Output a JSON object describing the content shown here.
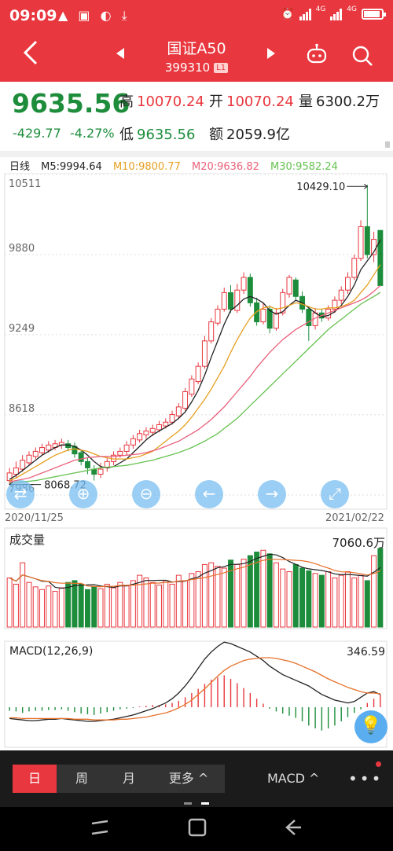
{
  "status_bar": {
    "time": "09:09",
    "left_icons": "▲ ▣ ◐ ⤓",
    "net1": "4G",
    "net2": "4G"
  },
  "header": {
    "title": "国证A50",
    "code": "399310",
    "badge": "L1",
    "back_icon": "back-arrow-icon",
    "prev_icon": "prev-triangle-icon",
    "next_icon": "next-triangle-icon",
    "robot_icon": "robot-icon",
    "search_icon": "search-icon"
  },
  "quote": {
    "price": "9635.56",
    "change": "-429.77",
    "change_pct": "-4.27%",
    "high_label": "高",
    "high": "10070.24",
    "open_label": "开",
    "open": "10070.24",
    "volume_label": "量",
    "volume": "6300.2万",
    "low_label": "低",
    "low": "9635.56",
    "amount_label": "额",
    "amount": "2059.9亿"
  },
  "ma_legend": {
    "period": "日线",
    "ma5": "M5:9994.64",
    "ma10": "M10:9800.77",
    "ma20": "M20:9636.82",
    "ma30": "M30:9582.24"
  },
  "colors": {
    "up": "#e8373e",
    "down": "#1d8d3c",
    "ma5": "#222222",
    "ma10": "#e6a020",
    "ma20": "#e9607a",
    "ma30": "#66c250"
  },
  "chart_data": [
    {
      "type": "candlestick",
      "y_axis_labels": [
        "10511",
        "9880",
        "9249",
        "8618",
        "7986"
      ],
      "ylim": [
        7986,
        10511
      ],
      "x_start": "2020/11/25",
      "x_end": "2021/02/22",
      "max_annotation": "10429.10",
      "min_annotation": "8068.72",
      "candles": [
        {
          "o": 8100,
          "c": 8160,
          "h": 8200,
          "l": 8068.72
        },
        {
          "o": 8150,
          "c": 8200,
          "h": 8250,
          "l": 8120
        },
        {
          "o": 8190,
          "c": 8260,
          "h": 8300,
          "l": 8170
        },
        {
          "o": 8240,
          "c": 8300,
          "h": 8330,
          "l": 8220
        },
        {
          "o": 8290,
          "c": 8330,
          "h": 8360,
          "l": 8270
        },
        {
          "o": 8320,
          "c": 8360,
          "h": 8390,
          "l": 8300
        },
        {
          "o": 8340,
          "c": 8380,
          "h": 8410,
          "l": 8320
        },
        {
          "o": 8360,
          "c": 8390,
          "h": 8420,
          "l": 8340
        },
        {
          "o": 8380,
          "c": 8400,
          "h": 8430,
          "l": 8350
        },
        {
          "o": 8390,
          "c": 8360,
          "h": 8420,
          "l": 8330
        },
        {
          "o": 8370,
          "c": 8310,
          "h": 8400,
          "l": 8280
        },
        {
          "o": 8320,
          "c": 8250,
          "h": 8340,
          "l": 8220
        },
        {
          "o": 8250,
          "c": 8200,
          "h": 8280,
          "l": 8150
        },
        {
          "o": 8190,
          "c": 8150,
          "h": 8220,
          "l": 8100
        },
        {
          "o": 8150,
          "c": 8190,
          "h": 8240,
          "l": 8120
        },
        {
          "o": 8200,
          "c": 8250,
          "h": 8280,
          "l": 8170
        },
        {
          "o": 8250,
          "c": 8300,
          "h": 8330,
          "l": 8220
        },
        {
          "o": 8300,
          "c": 8330,
          "h": 8360,
          "l": 8280
        },
        {
          "o": 8330,
          "c": 8380,
          "h": 8410,
          "l": 8300
        },
        {
          "o": 8380,
          "c": 8430,
          "h": 8460,
          "l": 8350
        },
        {
          "o": 8420,
          "c": 8470,
          "h": 8500,
          "l": 8400
        },
        {
          "o": 8460,
          "c": 8490,
          "h": 8520,
          "l": 8430
        },
        {
          "o": 8480,
          "c": 8510,
          "h": 8540,
          "l": 8450
        },
        {
          "o": 8500,
          "c": 8540,
          "h": 8570,
          "l": 8480
        },
        {
          "o": 8530,
          "c": 8560,
          "h": 8590,
          "l": 8510
        },
        {
          "o": 8560,
          "c": 8620,
          "h": 8650,
          "l": 8540
        },
        {
          "o": 8610,
          "c": 8680,
          "h": 8710,
          "l": 8590
        },
        {
          "o": 8670,
          "c": 8800,
          "h": 8830,
          "l": 8650
        },
        {
          "o": 8780,
          "c": 8900,
          "h": 8930,
          "l": 8760
        },
        {
          "o": 8880,
          "c": 9000,
          "h": 9030,
          "l": 8860
        },
        {
          "o": 9000,
          "c": 9200,
          "h": 9240,
          "l": 8980
        },
        {
          "o": 9200,
          "c": 9350,
          "h": 9380,
          "l": 9180
        },
        {
          "o": 9340,
          "c": 9450,
          "h": 9480,
          "l": 9320
        },
        {
          "o": 9450,
          "c": 9580,
          "h": 9620,
          "l": 9430
        },
        {
          "o": 9580,
          "c": 9450,
          "h": 9640,
          "l": 9420
        },
        {
          "o": 9440,
          "c": 9600,
          "h": 9650,
          "l": 9420
        },
        {
          "o": 9600,
          "c": 9700,
          "h": 9740,
          "l": 9570
        },
        {
          "o": 9700,
          "c": 9500,
          "h": 9730,
          "l": 9470
        },
        {
          "o": 9500,
          "c": 9350,
          "h": 9540,
          "l": 9320
        },
        {
          "o": 9350,
          "c": 9450,
          "h": 9500,
          "l": 9330
        },
        {
          "o": 9450,
          "c": 9300,
          "h": 9480,
          "l": 9260
        },
        {
          "o": 9300,
          "c": 9420,
          "h": 9460,
          "l": 9280
        },
        {
          "o": 9420,
          "c": 9580,
          "h": 9610,
          "l": 9400
        },
        {
          "o": 9570,
          "c": 9700,
          "h": 9720,
          "l": 9540
        },
        {
          "o": 9680,
          "c": 9550,
          "h": 9700,
          "l": 9520
        },
        {
          "o": 9550,
          "c": 9450,
          "h": 9590,
          "l": 9420
        },
        {
          "o": 9450,
          "c": 9320,
          "h": 9470,
          "l": 9200
        },
        {
          "o": 9320,
          "c": 9420,
          "h": 9460,
          "l": 9290
        },
        {
          "o": 9420,
          "c": 9380,
          "h": 9450,
          "l": 9350
        },
        {
          "o": 9380,
          "c": 9450,
          "h": 9480,
          "l": 9360
        },
        {
          "o": 9450,
          "c": 9520,
          "h": 9550,
          "l": 9420
        },
        {
          "o": 9520,
          "c": 9600,
          "h": 9630,
          "l": 9490
        },
        {
          "o": 9600,
          "c": 9700,
          "h": 9740,
          "l": 9570
        },
        {
          "o": 9700,
          "c": 9850,
          "h": 9880,
          "l": 9680
        },
        {
          "o": 9850,
          "c": 10100,
          "h": 10150,
          "l": 9830
        },
        {
          "o": 10100,
          "c": 9880,
          "h": 10429.1,
          "l": 9850
        },
        {
          "o": 9880,
          "c": 10000,
          "h": 10060,
          "l": 9820
        },
        {
          "o": 10070.24,
          "c": 9635.56,
          "h": 10070.24,
          "l": 9635.56
        }
      ],
      "ma5": [
        8110,
        8140,
        8180,
        8220,
        8260,
        8300,
        8330,
        8360,
        8380,
        8380,
        8370,
        8340,
        8300,
        8250,
        8210,
        8200,
        8210,
        8240,
        8270,
        8320,
        8370,
        8420,
        8460,
        8490,
        8520,
        8550,
        8590,
        8640,
        8720,
        8810,
        8930,
        9070,
        9200,
        9330,
        9440,
        9480,
        9530,
        9550,
        9530,
        9500,
        9440,
        9410,
        9430,
        9480,
        9520,
        9500,
        9460,
        9420,
        9390,
        9400,
        9430,
        9480,
        9550,
        9640,
        9760,
        9830,
        9900,
        9994.64
      ],
      "ma10": [
        8100,
        8120,
        8150,
        8180,
        8210,
        8240,
        8270,
        8300,
        8320,
        8340,
        8350,
        8340,
        8330,
        8310,
        8290,
        8280,
        8270,
        8270,
        8270,
        8280,
        8290,
        8310,
        8330,
        8370,
        8410,
        8450,
        8490,
        8540,
        8600,
        8670,
        8740,
        8820,
        8910,
        9000,
        9110,
        9210,
        9300,
        9380,
        9430,
        9460,
        9470,
        9450,
        9460,
        9480,
        9500,
        9490,
        9470,
        9450,
        9450,
        9460,
        9460,
        9470,
        9490,
        9520,
        9580,
        9640,
        9720,
        9800.77
      ],
      "ma20": [
        8090,
        8100,
        8110,
        8120,
        8140,
        8160,
        8180,
        8200,
        8220,
        8240,
        8260,
        8270,
        8280,
        8285,
        8290,
        8290,
        8290,
        8295,
        8300,
        8305,
        8310,
        8320,
        8335,
        8350,
        8370,
        8390,
        8410,
        8440,
        8470,
        8500,
        8540,
        8580,
        8630,
        8680,
        8740,
        8800,
        8860,
        8920,
        8990,
        9050,
        9110,
        9160,
        9210,
        9250,
        9290,
        9320,
        9350,
        9380,
        9400,
        9420,
        9440,
        9460,
        9480,
        9500,
        9520,
        9550,
        9590,
        9636.82
      ],
      "ma30": [
        8080,
        8085,
        8090,
        8095,
        8100,
        8110,
        8120,
        8130,
        8140,
        8150,
        8160,
        8170,
        8180,
        8190,
        8200,
        8205,
        8210,
        8215,
        8220,
        8230,
        8240,
        8250,
        8260,
        8275,
        8290,
        8305,
        8320,
        8340,
        8360,
        8385,
        8410,
        8440,
        8470,
        8510,
        8550,
        8590,
        8640,
        8690,
        8740,
        8790,
        8840,
        8890,
        8940,
        8990,
        9040,
        9090,
        9140,
        9190,
        9240,
        9290,
        9330,
        9370,
        9410,
        9450,
        9490,
        9520,
        9550,
        9582.24
      ]
    },
    {
      "type": "bar",
      "title": "成交量",
      "value_label": "7060.6万",
      "volumes": [
        55,
        48,
        72,
        50,
        45,
        42,
        46,
        40,
        44,
        50,
        52,
        48,
        42,
        45,
        43,
        48,
        44,
        50,
        46,
        52,
        58,
        55,
        50,
        47,
        52,
        48,
        58,
        52,
        60,
        62,
        70,
        72,
        68,
        66,
        75,
        70,
        76,
        80,
        84,
        86,
        82,
        72,
        65,
        62,
        70,
        66,
        63,
        60,
        58,
        62,
        55,
        58,
        62,
        55,
        58,
        52,
        80,
        88
      ]
    },
    {
      "type": "bar",
      "title": "MACD(12,26,9)",
      "value_label": "346.59",
      "hist": [
        -5,
        -6,
        -8,
        -6,
        -5,
        -5,
        -4,
        -4,
        -3,
        -5,
        -7,
        -9,
        -10,
        -11,
        -9,
        -7,
        -5,
        -3,
        -2,
        -1,
        1,
        2,
        3,
        3,
        4,
        6,
        9,
        14,
        20,
        26,
        33,
        39,
        42,
        45,
        40,
        34,
        27,
        20,
        12,
        5,
        -2,
        -6,
        -9,
        -12,
        -15,
        -20,
        -26,
        -30,
        -33,
        -30,
        -26,
        -20,
        -14,
        -8,
        -3,
        6,
        12,
        18
      ],
      "dif": [
        -16,
        -17,
        -18,
        -19,
        -19,
        -18,
        -17,
        -17,
        -16,
        -17,
        -18,
        -19,
        -20,
        -20,
        -19,
        -18,
        -17,
        -15,
        -13,
        -11,
        -8,
        -5,
        -2,
        2,
        6,
        12,
        20,
        30,
        42,
        55,
        68,
        78,
        86,
        92,
        90,
        86,
        82,
        78,
        72,
        66,
        58,
        52,
        46,
        42,
        38,
        34,
        30,
        24,
        18,
        14,
        10,
        8,
        6,
        8,
        14,
        20,
        22,
        18
      ],
      "dea": [
        -15,
        -15,
        -16,
        -16,
        -16,
        -16,
        -16,
        -16,
        -16,
        -16,
        -17,
        -17,
        -17,
        -18,
        -18,
        -18,
        -18,
        -17,
        -17,
        -16,
        -15,
        -14,
        -12,
        -10,
        -8,
        -5,
        -1,
        4,
        10,
        18,
        26,
        35,
        44,
        52,
        58,
        62,
        66,
        68,
        69,
        70,
        70,
        69,
        67,
        65,
        62,
        58,
        54,
        50,
        45,
        40,
        36,
        32,
        28,
        25,
        22,
        20,
        20,
        19
      ]
    }
  ],
  "tabs": {
    "day": "日",
    "week": "周",
    "month": "月",
    "more": "更多 ^",
    "indicator": "MACD ^",
    "more_dots": "•••"
  },
  "nav_buttons": [
    "switch-icon",
    "zoom-in-icon",
    "zoom-out-icon",
    "left-arrow-icon",
    "right-arrow-icon",
    "fullscreen-icon"
  ]
}
